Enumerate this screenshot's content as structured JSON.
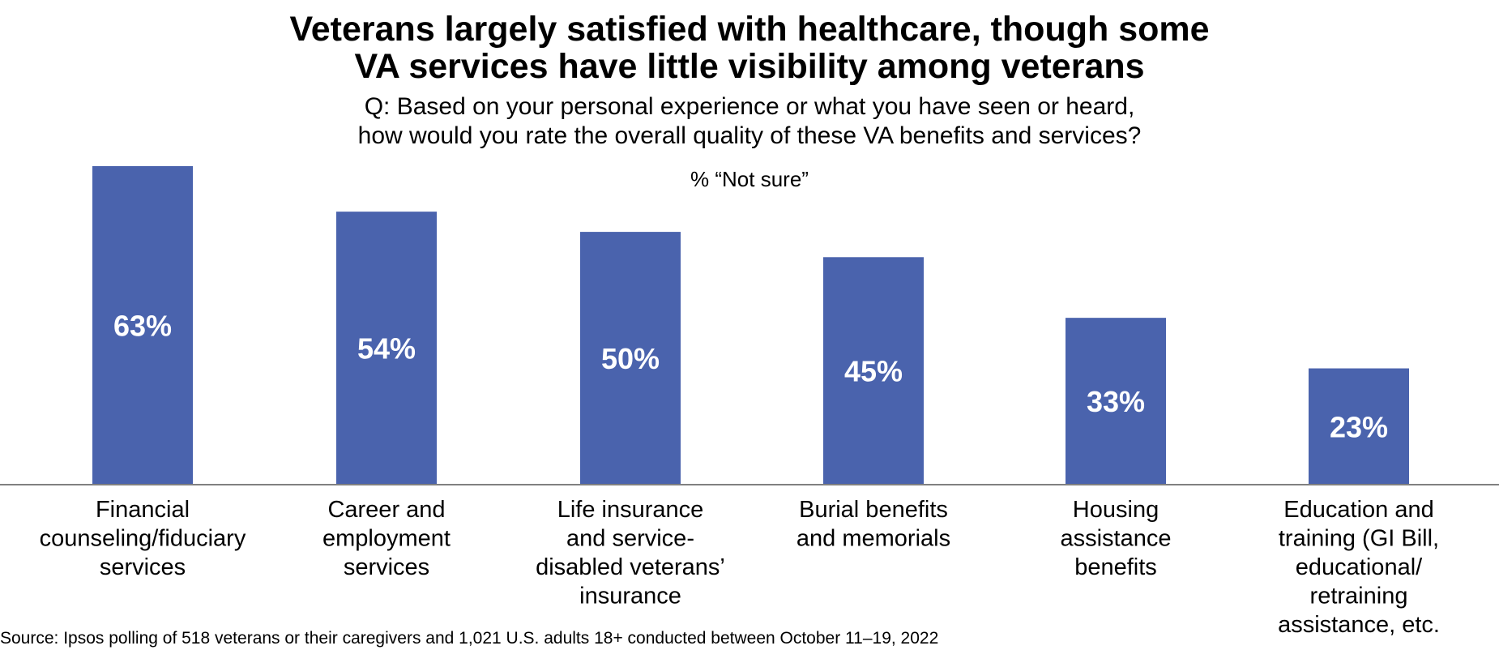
{
  "chart_data": {
    "type": "bar",
    "title": [
      "Veterans largely satisfied with healthcare, though some",
      "VA services have little visibility among veterans"
    ],
    "subtitle": [
      "Q: Based on your personal experience or what you have seen or heard,",
      "how would you rate the overall quality of these VA benefits and services?"
    ],
    "measure_label": "% “Not sure”",
    "categories": [
      [
        "Financial",
        "counseling/fiduciary",
        "services"
      ],
      [
        "Career and",
        "employment",
        "services"
      ],
      [
        "Life insurance",
        "and service-",
        "disabled veterans’",
        "insurance"
      ],
      [
        "Burial benefits",
        "and memorials"
      ],
      [
        "Housing",
        "assistance",
        "benefits"
      ],
      [
        "Education and",
        "training (GI Bill,",
        "educational/",
        "retraining",
        "assistance, etc."
      ]
    ],
    "values": [
      63,
      54,
      50,
      45,
      33,
      23
    ],
    "data_labels": [
      "63%",
      "54%",
      "50%",
      "45%",
      "33%",
      "23%"
    ],
    "ylim": [
      0,
      63
    ],
    "grid": false,
    "bar_color": "#4a63ad",
    "source": "Source: Ipsos polling of 518 veterans or their caregivers and 1,021 U.S. adults 18+ conducted between October 11–19, 2022"
  }
}
